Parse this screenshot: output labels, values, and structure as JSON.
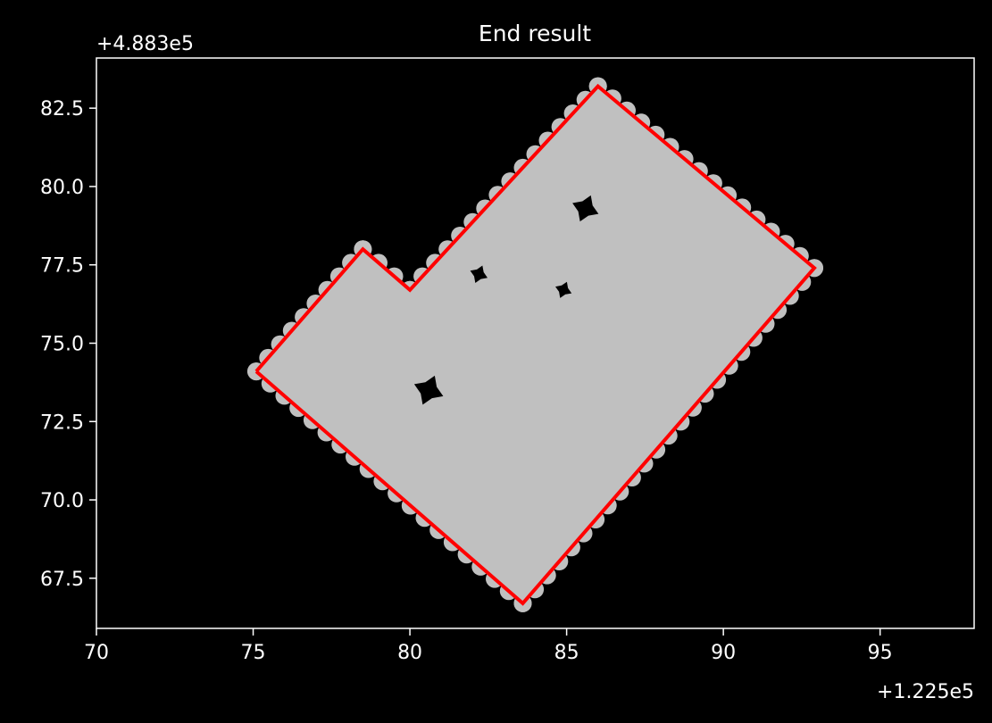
{
  "chart_data": {
    "type": "polygon",
    "title": "End result",
    "xlabel": "",
    "ylabel": "",
    "x_offset_label": "+1.225e5",
    "y_offset_label": "+4.883e5",
    "xlim": [
      70,
      98
    ],
    "ylim": [
      65.9,
      84.1
    ],
    "x_ticks": [
      70,
      75,
      80,
      85,
      90,
      95
    ],
    "y_ticks": [
      67.5,
      70.0,
      72.5,
      75.0,
      77.5,
      80.0,
      82.5
    ],
    "x_tick_labels": [
      "70",
      "75",
      "80",
      "85",
      "90",
      "95"
    ],
    "y_tick_labels": [
      "67.5",
      "70.0",
      "72.5",
      "75.0",
      "77.5",
      "80.0",
      "82.5"
    ],
    "grid": false,
    "colors": {
      "background": "#000000",
      "fill": "#c0c0c0",
      "outline": "#ff0000",
      "holes": "#000000",
      "axes": "#ffffff"
    },
    "filled_region": {
      "name": "",
      "points": [
        [
          75.1,
          74.1
        ],
        [
          78.5,
          78.0
        ],
        [
          80.0,
          76.7
        ],
        [
          86.0,
          83.2
        ],
        [
          92.9,
          77.4
        ],
        [
          83.6,
          66.7
        ],
        [
          75.1,
          74.1
        ]
      ]
    },
    "outline": {
      "name": "",
      "points": [
        [
          75.1,
          74.1
        ],
        [
          78.5,
          78.0
        ],
        [
          80.0,
          76.7
        ],
        [
          86.0,
          83.2
        ],
        [
          92.9,
          77.4
        ],
        [
          83.6,
          66.7
        ],
        [
          75.1,
          74.1
        ]
      ]
    },
    "holes": [
      {
        "x": 85.6,
        "y": 79.3,
        "r": 0.45
      },
      {
        "x": 82.2,
        "y": 77.2,
        "r": 0.3
      },
      {
        "x": 84.9,
        "y": 76.7,
        "r": 0.28
      },
      {
        "x": 80.6,
        "y": 73.5,
        "r": 0.5
      }
    ]
  }
}
